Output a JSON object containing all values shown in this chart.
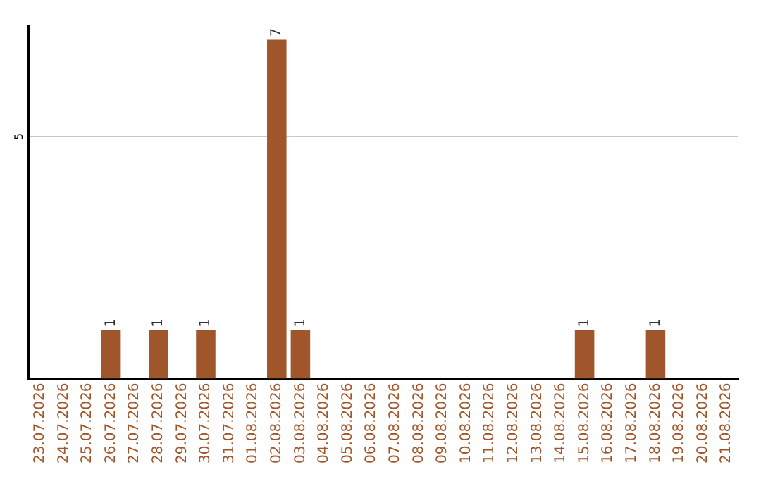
{
  "chart_data": {
    "type": "bar",
    "categories": [
      "23.07.2026",
      "24.07.2026",
      "25.07.2026",
      "26.07.2026",
      "27.07.2026",
      "28.07.2026",
      "29.07.2026",
      "30.07.2026",
      "31.07.2026",
      "01.08.2026",
      "02.08.2026",
      "03.08.2026",
      "04.08.2026",
      "05.08.2026",
      "06.08.2026",
      "07.08.2026",
      "08.08.2026",
      "09.08.2026",
      "10.08.2026",
      "11.08.2026",
      "12.08.2026",
      "13.08.2026",
      "14.08.2026",
      "15.08.2026",
      "16.08.2026",
      "17.08.2026",
      "18.08.2026",
      "19.08.2026",
      "20.08.2026",
      "21.08.2026"
    ],
    "values": [
      0,
      0,
      0,
      1,
      0,
      1,
      0,
      1,
      0,
      0,
      7,
      1,
      0,
      0,
      0,
      0,
      0,
      0,
      0,
      0,
      0,
      0,
      0,
      1,
      0,
      0,
      1,
      0,
      0,
      0
    ],
    "value_labels": [
      null,
      null,
      null,
      "1",
      null,
      "1",
      null,
      "1",
      null,
      null,
      "7",
      "1",
      null,
      null,
      null,
      null,
      null,
      null,
      null,
      null,
      null,
      null,
      null,
      "1",
      null,
      null,
      "1",
      null,
      null,
      null
    ],
    "color": "#a0562a",
    "ylim": [
      0,
      7.3
    ],
    "yticks": [
      5
    ],
    "grid": "y",
    "legend": false
  }
}
